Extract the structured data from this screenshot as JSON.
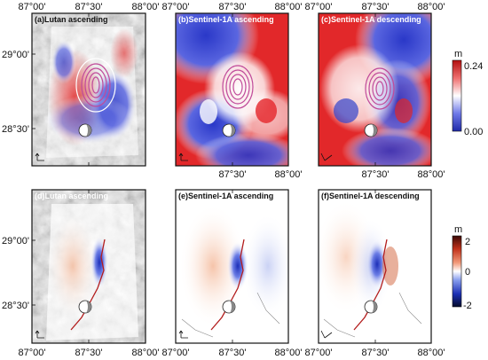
{
  "longitude_ticks": [
    "87°00'",
    "87°30'",
    "88°00'"
  ],
  "latitude_ticks": [
    "29°00'",
    "28°30'"
  ],
  "panels": [
    {
      "id": "a",
      "title": "(a)Lutan ascending",
      "kind": "wrapped",
      "base": "hillshade"
    },
    {
      "id": "b",
      "title": "(b)Sentinel-1A ascending",
      "kind": "wrapped",
      "base": "red"
    },
    {
      "id": "c",
      "title": "(c)Sentinel-1A descending",
      "kind": "wrapped",
      "base": "red"
    },
    {
      "id": "d",
      "title": "(d)Lutan ascending",
      "kind": "unwrapped",
      "base": "hillshade"
    },
    {
      "id": "e",
      "title": "(e)Sentinel-1A ascending",
      "kind": "unwrapped",
      "base": "white"
    },
    {
      "id": "f",
      "title": "(f)Sentinel-1A descending",
      "kind": "unwrapped",
      "base": "white"
    }
  ],
  "colorbar_top": {
    "unit": "m",
    "max_label": "0.24",
    "min_label": "0.00",
    "max": 0.24,
    "min": 0.0
  },
  "colorbar_bottom": {
    "unit": "m",
    "max_label": "2",
    "mid_label": "0",
    "min_label": "-2",
    "max": 2,
    "min": -2
  },
  "icon_names": [
    "north-arrow-icon",
    "focal-mechanism-beachball-icon",
    "fault-trace",
    "hillshade-relief"
  ],
  "colors": {
    "positive": "#d62728",
    "negative": "#2a38c8",
    "fringe_pink": "#c04a9a",
    "fault": "#b31c1c"
  }
}
